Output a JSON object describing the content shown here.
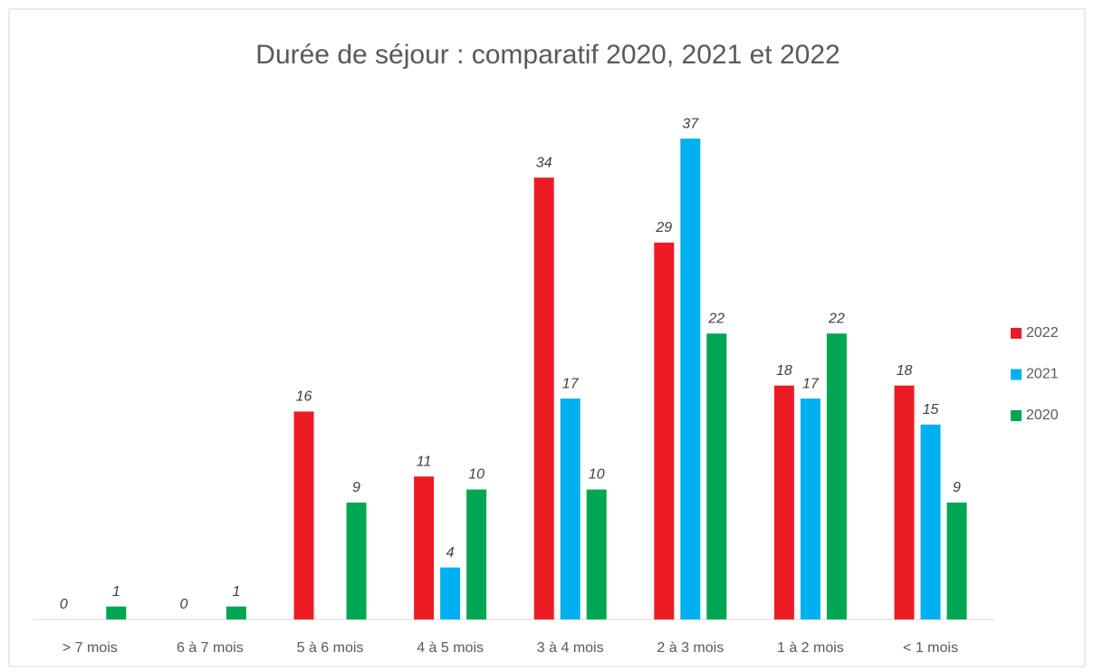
{
  "chart_data": {
    "type": "bar",
    "title": "Durée de séjour : comparatif 2020, 2021 et 2022",
    "categories": [
      "> 7 mois",
      "6 à 7 mois",
      "5 à 6 mois",
      "4 à 5 mois",
      "3 à 4 mois",
      "2 à 3 mois",
      "1 à 2 mois",
      "< 1 mois"
    ],
    "series": [
      {
        "name": "2022",
        "color": "#ed1c24",
        "values": [
          0,
          0,
          16,
          11,
          34,
          29,
          18,
          18
        ]
      },
      {
        "name": "2021",
        "color": "#00b0f0",
        "values": [
          null,
          null,
          null,
          4,
          17,
          37,
          17,
          15
        ]
      },
      {
        "name": "2020",
        "color": "#00a651",
        "values": [
          1,
          1,
          9,
          10,
          10,
          22,
          22,
          9
        ]
      }
    ],
    "ylim": [
      0,
      40
    ],
    "legend": "right"
  }
}
